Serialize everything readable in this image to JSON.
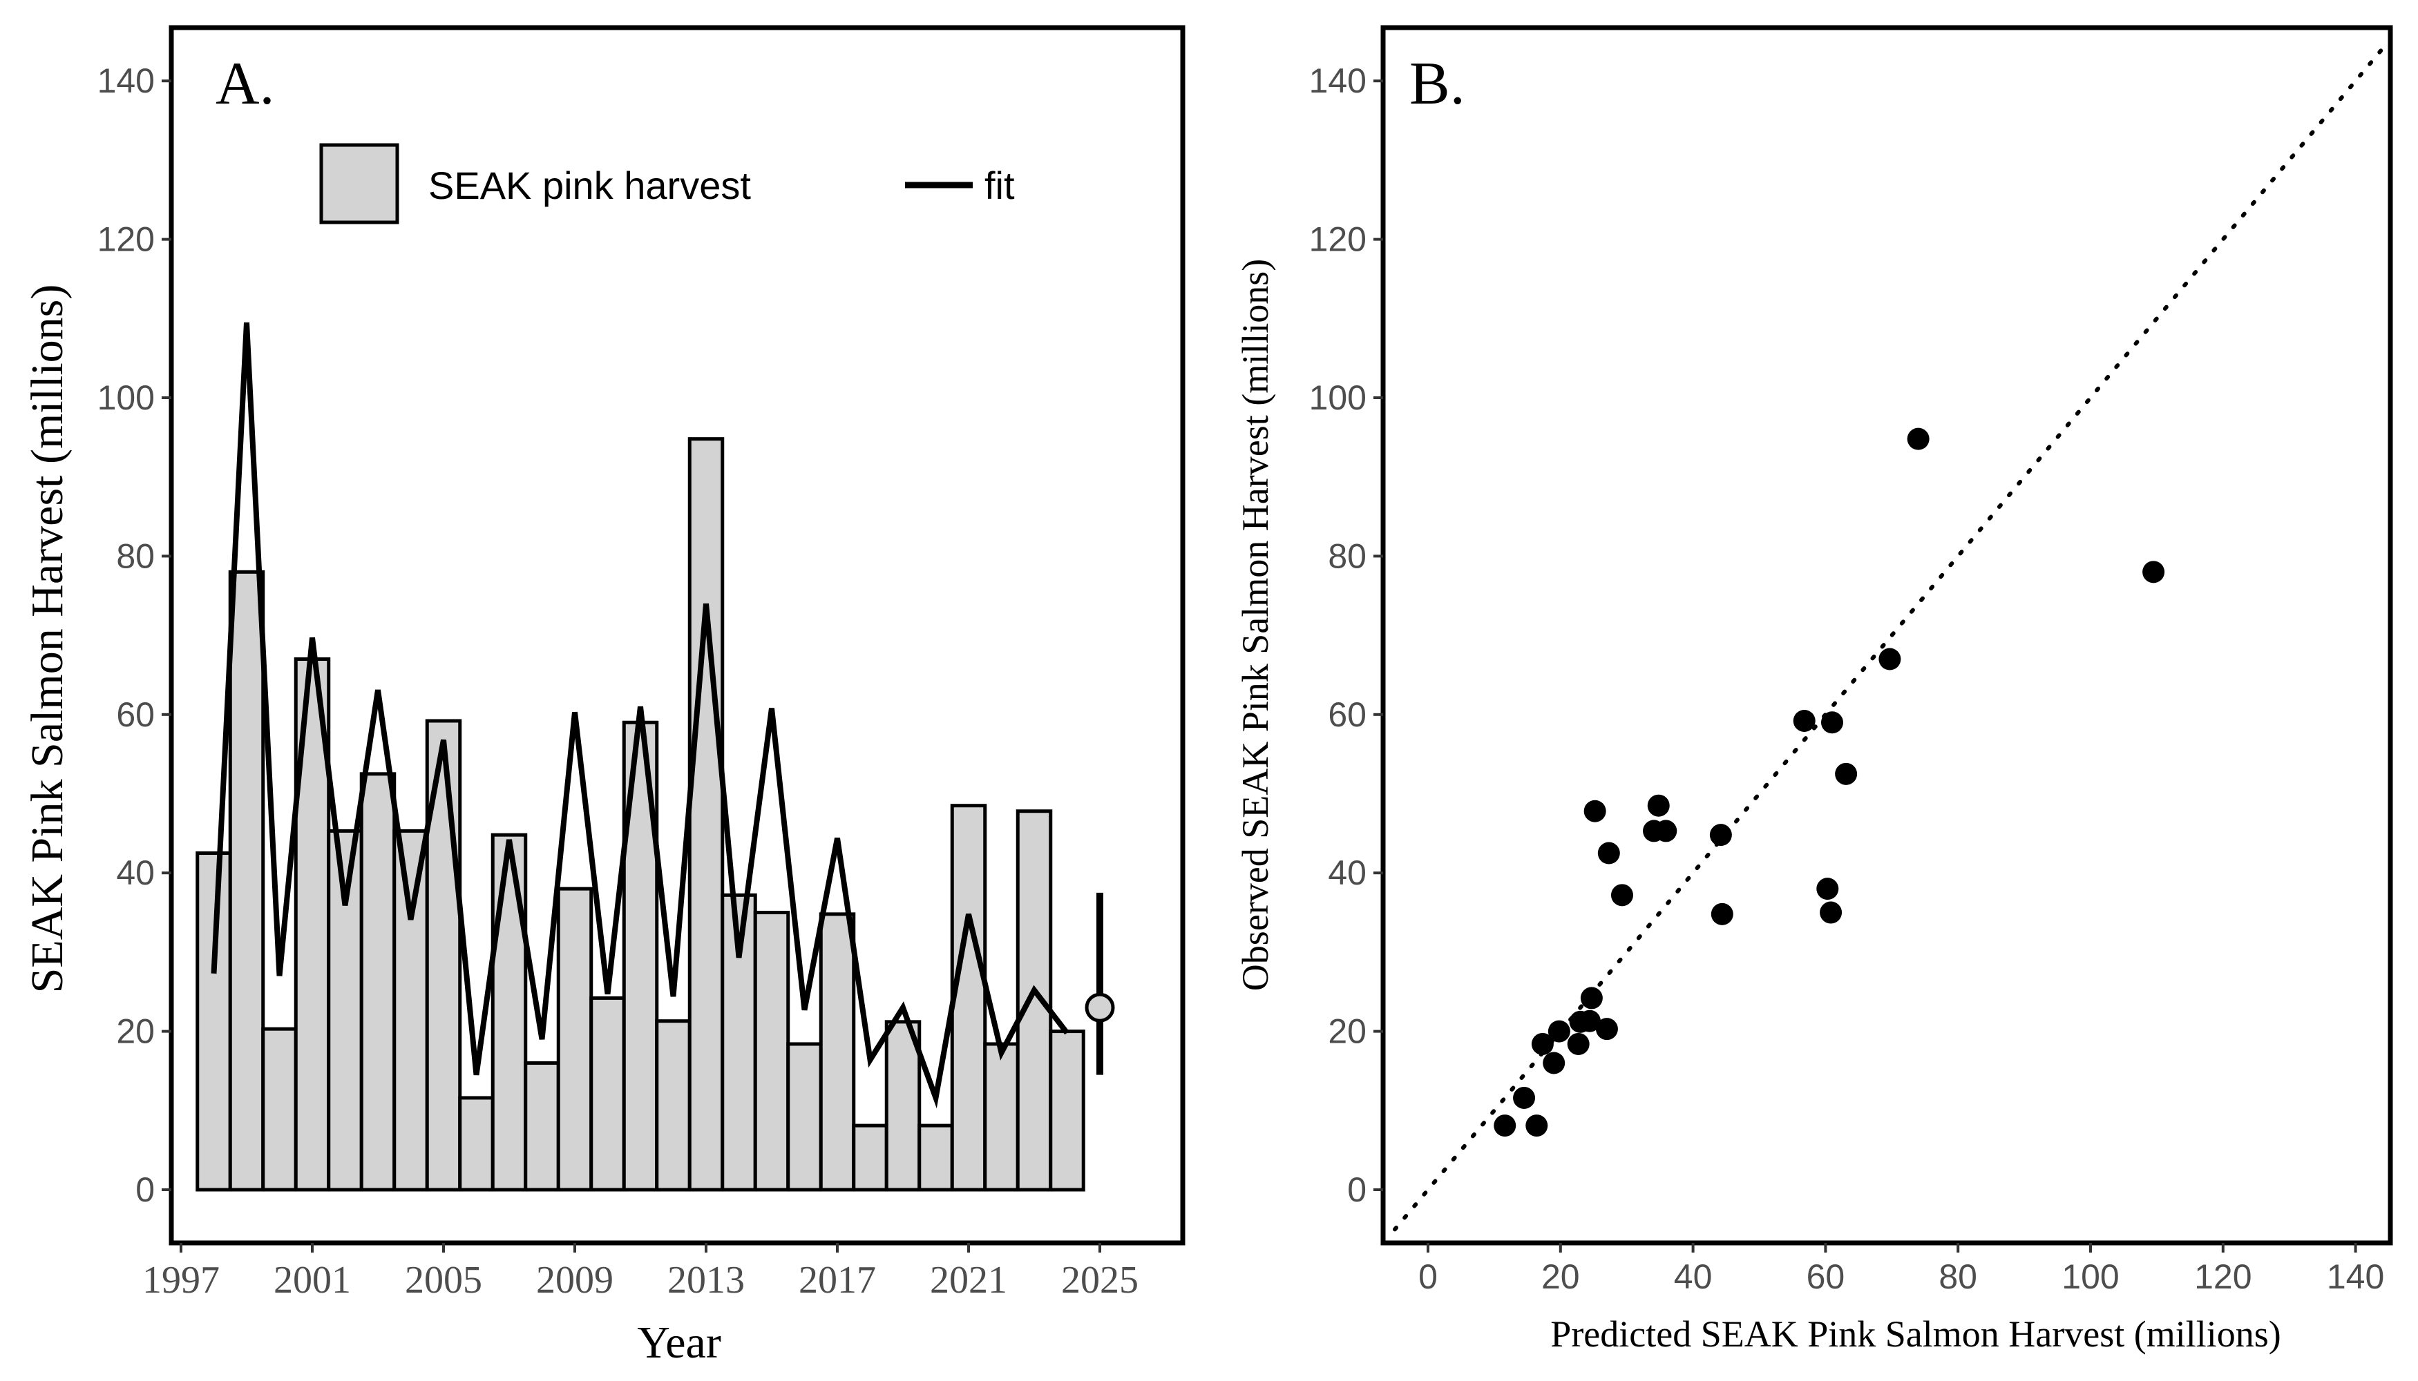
{
  "chart_data": [
    {
      "panel": "A.",
      "type": "bar",
      "xlabel": "Year",
      "ylabel": "SEAK Pink Salmon Harvest (millions)",
      "ylim": [
        0,
        140
      ],
      "yticks": [
        0,
        20,
        40,
        60,
        80,
        100,
        120,
        140
      ],
      "xticks": [
        1997,
        2001,
        2005,
        2009,
        2013,
        2017,
        2021,
        2025
      ],
      "grid": false,
      "legend": {
        "position": "top",
        "bar_label": "SEAK pink harvest",
        "line_label": "fit"
      },
      "years": [
        1998,
        1999,
        2000,
        2001,
        2002,
        2003,
        2004,
        2005,
        2006,
        2007,
        2008,
        2009,
        2010,
        2011,
        2012,
        2013,
        2014,
        2015,
        2016,
        2017,
        2018,
        2019,
        2020,
        2021,
        2022,
        2023,
        2024
      ],
      "series": [
        {
          "name": "SEAK pink harvest",
          "type": "bar",
          "values": [
            42.5,
            78,
            20.3,
            67,
            45.3,
            52.5,
            45.3,
            59.2,
            11.6,
            44.8,
            16,
            38,
            24.2,
            59,
            21.3,
            94.8,
            37.2,
            35,
            18.4,
            34.8,
            8.1,
            21.2,
            8.1,
            48.5,
            18.4,
            47.8,
            20
          ]
        },
        {
          "name": "fit",
          "type": "line",
          "values": [
            27.3,
            109.5,
            27,
            69.7,
            35.9,
            63.1,
            34.1,
            56.8,
            14.5,
            44.2,
            19,
            60.3,
            24.7,
            61,
            24.4,
            74,
            29.3,
            60.8,
            22.7,
            44.4,
            16.4,
            23,
            11.6,
            34.8,
            17.3,
            25.2,
            19.8
          ]
        }
      ],
      "forecast": {
        "year": 2025,
        "point": 23,
        "lower": 14.5,
        "upper": 37.5
      }
    },
    {
      "panel": "B.",
      "type": "scatter",
      "xlabel": "Predicted SEAK Pink Salmon Harvest (millions)",
      "ylabel": "Observed SEAK Pink Salmon Harvest (millions)",
      "xlim": [
        -5,
        145
      ],
      "ylim": [
        -6,
        147
      ],
      "xticks": [
        0,
        20,
        40,
        60,
        80,
        100,
        120,
        140
      ],
      "yticks": [
        0,
        20,
        40,
        60,
        80,
        100,
        120,
        140
      ],
      "grid": false,
      "reference_line": "1:1 dotted",
      "points": [
        [
          27.3,
          42.5
        ],
        [
          109.5,
          78
        ],
        [
          27,
          20.3
        ],
        [
          69.7,
          67
        ],
        [
          35.9,
          45.3
        ],
        [
          63.1,
          52.5
        ],
        [
          34.1,
          45.3
        ],
        [
          56.8,
          59.2
        ],
        [
          14.5,
          11.6
        ],
        [
          44.2,
          44.8
        ],
        [
          19,
          16
        ],
        [
          60.3,
          38
        ],
        [
          24.7,
          24.2
        ],
        [
          61,
          59
        ],
        [
          24.4,
          21.3
        ],
        [
          74,
          94.8
        ],
        [
          29.3,
          37.2
        ],
        [
          60.8,
          35
        ],
        [
          22.7,
          18.4
        ],
        [
          44.4,
          34.8
        ],
        [
          16.4,
          8.1
        ],
        [
          23,
          21.2
        ],
        [
          11.6,
          8.1
        ],
        [
          34.8,
          48.5
        ],
        [
          17.3,
          18.4
        ],
        [
          25.2,
          47.8
        ],
        [
          19.8,
          20
        ]
      ]
    }
  ]
}
